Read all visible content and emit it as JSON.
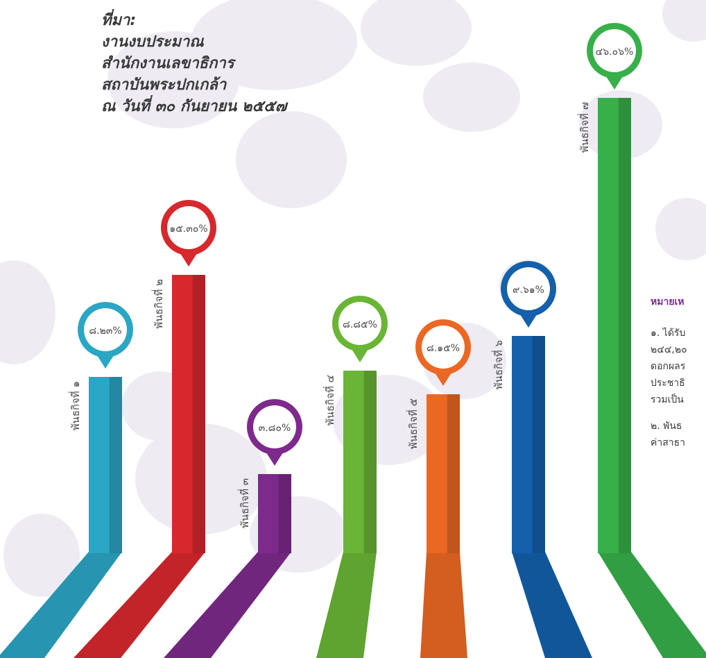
{
  "source": {
    "lines": [
      "ที่มา:",
      "งานงบประมาณ",
      "สำนักงานเลขาธิการ",
      "สถาบันพระปกเกล้า",
      "ณ วันที่ ๓๐ กันยายน ๒๕๕๗"
    ]
  },
  "note": {
    "title": "หมายเห",
    "paragraphs": [
      [
        "๑. ได้รับ",
        "๒๔๔,๒๐",
        "ดอกผลร",
        "ประชาธิ",
        "รวมเป็น"
      ],
      [
        "๒. พันธ",
        "ค่าสาธา"
      ]
    ]
  },
  "chart_data": {
    "type": "bar",
    "categories": [
      "พันธกิจที่ ๑",
      "พันธกิจที่ ๒",
      "พันธกิจที่ ๓",
      "พันธกิจที่ ๔",
      "พันธกิจที่ ๕",
      "พันธกิจที่ ๖",
      "พันธกิจที่ ๗"
    ],
    "values": [
      8.23,
      15.3,
      3.8,
      8.85,
      8.15,
      9.61,
      46.06
    ],
    "value_labels": [
      "๘.๒๓%",
      "๑๕.๓๐%",
      "๓.๘๐%",
      "๘.๘๕%",
      "๘.๑๕%",
      "๙.๖๑%",
      "๔๖.๐๖%"
    ],
    "colors": [
      "#2ba6c4",
      "#d7282d",
      "#7d2a8c",
      "#6ab535",
      "#ea6823",
      "#1460ab",
      "#38b04a"
    ],
    "title": "",
    "xlabel": "",
    "ylabel": ""
  }
}
